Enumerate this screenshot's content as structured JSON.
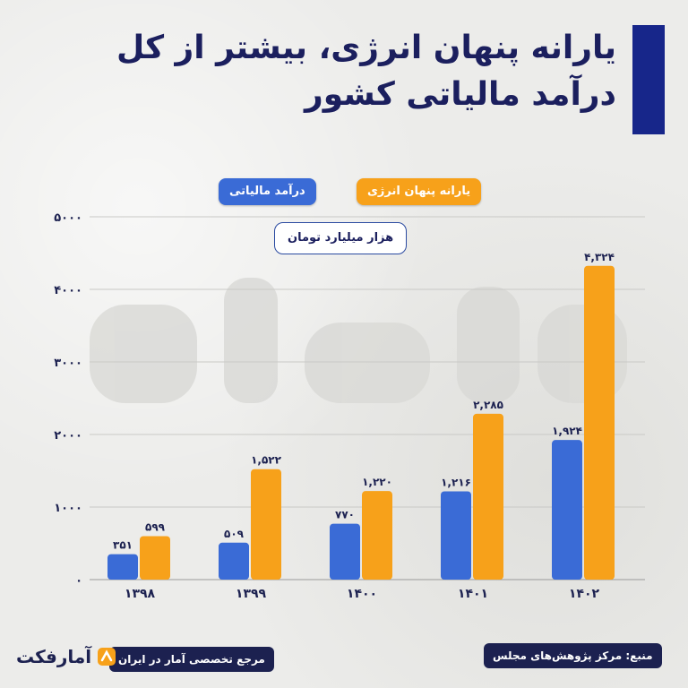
{
  "title": "یارانه پنهان انرژی، بیشتر از کل درآمد مالیاتی کشور",
  "legend": {
    "energy_subsidy": "یارانه پنهان انرژی",
    "tax_revenue": "درآمد مالیاتی"
  },
  "unit": "هزار میلیارد تومان",
  "footer": {
    "source": "منبع: مرکز پژوهش‌های مجلس",
    "reference": "مرجع تخصصی آمار در ایران",
    "brand": "آمارفکت"
  },
  "colors": {
    "tax": "#3a6bd6",
    "subsidy": "#f7a11a",
    "title_bar": "#17268a",
    "navy": "#1c2150"
  },
  "chart_data": {
    "type": "bar",
    "categories": [
      "۱۳۹۸",
      "۱۳۹۹",
      "۱۴۰۰",
      "۱۴۰۱",
      "۱۴۰۲"
    ],
    "series": [
      {
        "name": "درآمد مالیاتی",
        "values": [
          351,
          509,
          770,
          1216,
          1924
        ],
        "labels": [
          "۳۵۱",
          "۵۰۹",
          "۷۷۰",
          "۱,۲۱۶",
          "۱,۹۲۴"
        ]
      },
      {
        "name": "یارانه پنهان انرژی",
        "values": [
          599,
          1522,
          1220,
          2285,
          4324
        ],
        "labels": [
          "۵۹۹",
          "۱,۵۲۲",
          "۱,۲۲۰",
          "۲,۲۸۵",
          "۴,۳۲۴"
        ]
      }
    ],
    "yticks": [
      0,
      1000,
      2000,
      3000,
      4000,
      5000
    ],
    "ytick_labels": [
      "۰",
      "۱۰۰۰",
      "۲۰۰۰",
      "۳۰۰۰",
      "۴۰۰۰",
      "۵۰۰۰"
    ],
    "ylim": [
      0,
      5000
    ],
    "grid": true
  }
}
